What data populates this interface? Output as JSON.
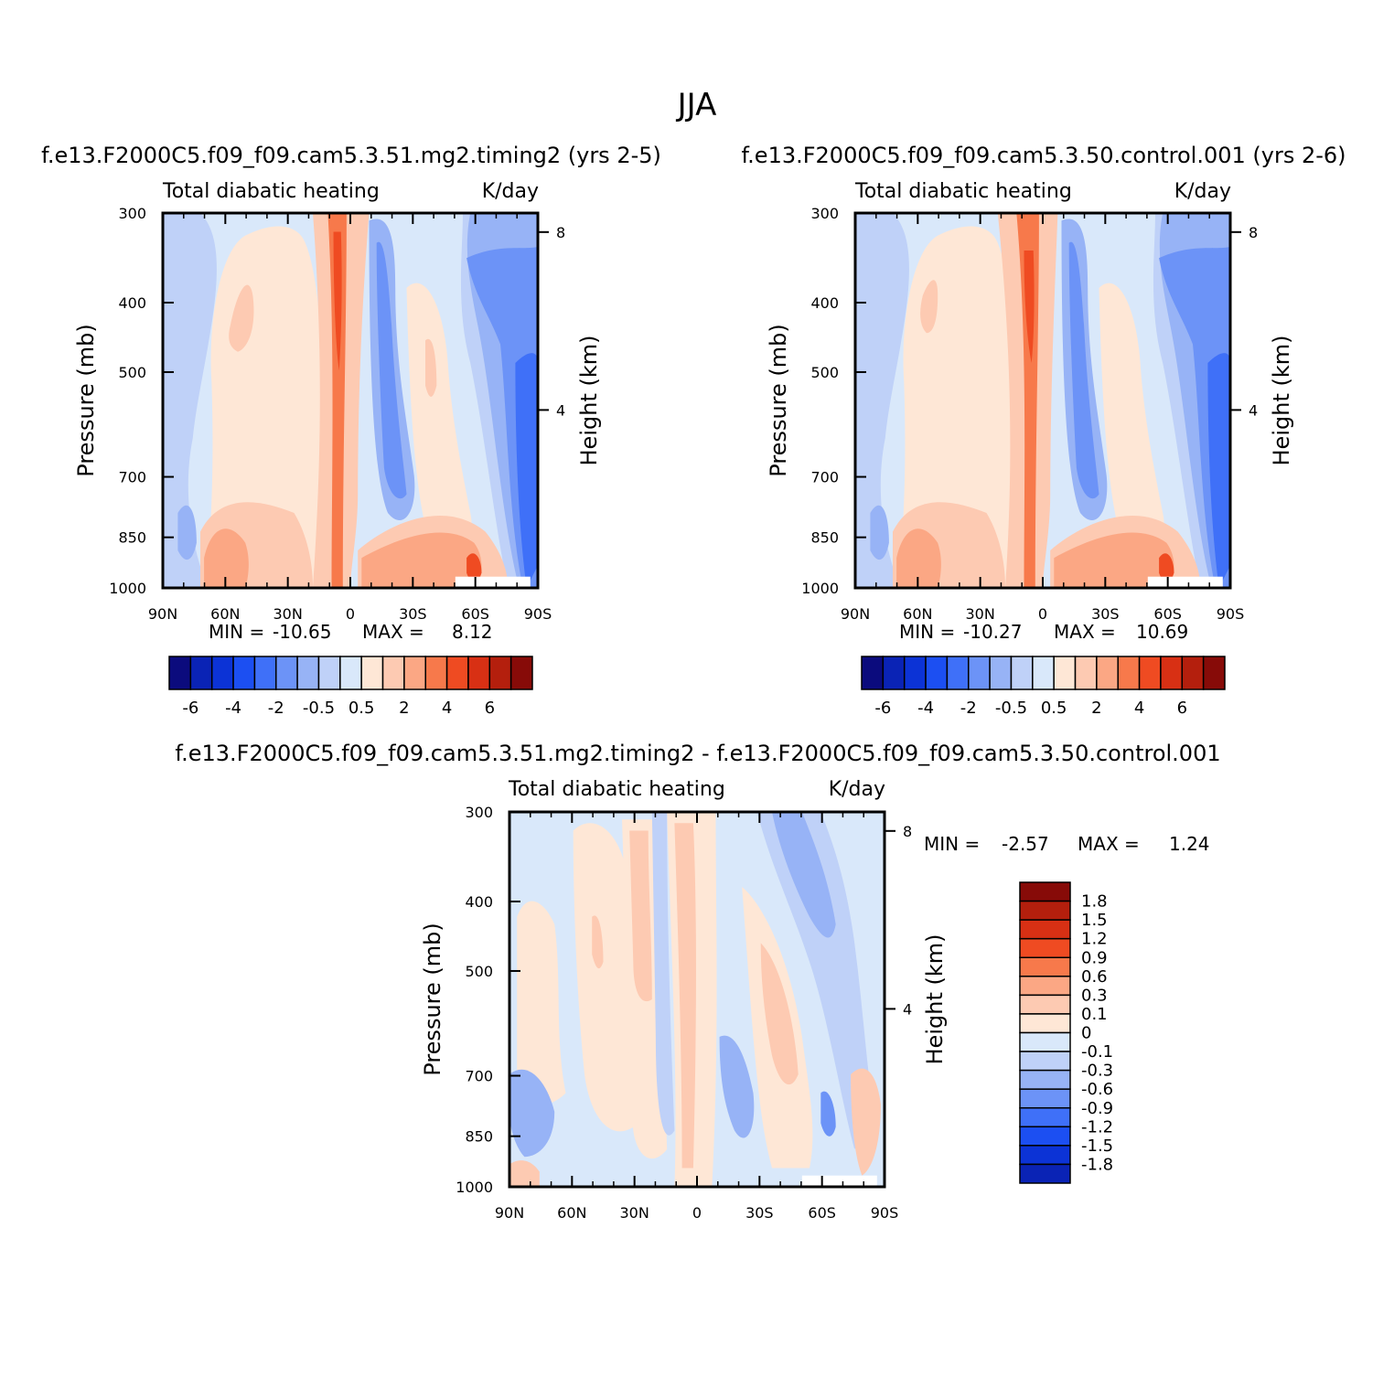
{
  "page": {
    "title": "JJA"
  },
  "chart_data": [
    {
      "id": "panel1",
      "type": "heatmap",
      "case_title": "f.e13.F2000C5.f09_f09.cam5.3.51.mg2.timing2 (yrs 2-5)",
      "left_label": "Total diabatic heating",
      "right_label": "K/day",
      "xlabel": "",
      "ylabel": "Pressure (mb)",
      "y2label": "Height (km)",
      "x_ticks": [
        "90N",
        "60N",
        "30N",
        "0",
        "30S",
        "60S",
        "90S"
      ],
      "y_ticks": [
        "300",
        "400",
        "500",
        "700",
        "850",
        "1000"
      ],
      "y_tick_values": [
        300,
        400,
        500,
        700,
        850,
        1000
      ],
      "y2_ticks": [
        "8",
        "4"
      ],
      "y2_tick_values": [
        8,
        4
      ],
      "xlim": [
        90,
        -90
      ],
      "ylim": [
        1000,
        300
      ],
      "min_label": "MIN =",
      "min_value": "-10.65",
      "max_label": "MAX =",
      "max_value": "8.12",
      "colorbar_labels": [
        "-6",
        "-4",
        "-2",
        "-0.5",
        "0.5",
        "2",
        "4",
        "6"
      ],
      "colorbar_levels": [
        -6,
        -5,
        -4,
        -3,
        -2,
        -1,
        -0.5,
        0,
        0.5,
        1,
        2,
        3,
        4,
        5,
        6
      ],
      "colorbar_colors": [
        "#0b0b7d",
        "#0a23b5",
        "#0c33d6",
        "#1c4ff2",
        "#3f70f8",
        "#6c93f7",
        "#97b3f6",
        "#bfd1f8",
        "#d9e8fa",
        "#fee7d6",
        "#fdcab2",
        "#fba784",
        "#f7794b",
        "#ef4b22",
        "#d83014",
        "#b41f0d",
        "#870b08"
      ]
    },
    {
      "id": "panel2",
      "type": "heatmap",
      "case_title": "f.e13.F2000C5.f09_f09.cam5.3.50.control.001 (yrs 2-6)",
      "left_label": "Total diabatic heating",
      "right_label": "K/day",
      "xlabel": "",
      "ylabel": "Pressure (mb)",
      "y2label": "Height (km)",
      "x_ticks": [
        "90N",
        "60N",
        "30N",
        "0",
        "30S",
        "60S",
        "90S"
      ],
      "y_ticks": [
        "300",
        "400",
        "500",
        "700",
        "850",
        "1000"
      ],
      "y_tick_values": [
        300,
        400,
        500,
        700,
        850,
        1000
      ],
      "y2_ticks": [
        "8",
        "4"
      ],
      "y2_tick_values": [
        8,
        4
      ],
      "xlim": [
        90,
        -90
      ],
      "ylim": [
        1000,
        300
      ],
      "min_label": "MIN =",
      "min_value": "-10.27",
      "max_label": "MAX =",
      "max_value": "10.69",
      "colorbar_labels": [
        "-6",
        "-4",
        "-2",
        "-0.5",
        "0.5",
        "2",
        "4",
        "6"
      ],
      "colorbar_levels": [
        -6,
        -5,
        -4,
        -3,
        -2,
        -1,
        -0.5,
        0,
        0.5,
        1,
        2,
        3,
        4,
        5,
        6
      ],
      "colorbar_colors": [
        "#0b0b7d",
        "#0a23b5",
        "#0c33d6",
        "#1c4ff2",
        "#3f70f8",
        "#6c93f7",
        "#97b3f6",
        "#bfd1f8",
        "#d9e8fa",
        "#fee7d6",
        "#fdcab2",
        "#fba784",
        "#f7794b",
        "#ef4b22",
        "#d83014",
        "#b41f0d",
        "#870b08"
      ]
    },
    {
      "id": "panel3",
      "type": "heatmap",
      "case_title": "f.e13.F2000C5.f09_f09.cam5.3.51.mg2.timing2 - f.e13.F2000C5.f09_f09.cam5.3.50.control.001",
      "left_label": "Total diabatic heating",
      "right_label": "K/day",
      "xlabel": "",
      "ylabel": "Pressure (mb)",
      "y2label": "Height (km)",
      "x_ticks": [
        "90N",
        "60N",
        "30N",
        "0",
        "30S",
        "60S",
        "90S"
      ],
      "y_ticks": [
        "300",
        "400",
        "500",
        "700",
        "850",
        "1000"
      ],
      "y_tick_values": [
        300,
        400,
        500,
        700,
        850,
        1000
      ],
      "y2_ticks": [
        "8",
        "4"
      ],
      "y2_tick_values": [
        8,
        4
      ],
      "xlim": [
        90,
        -90
      ],
      "ylim": [
        1000,
        300
      ],
      "min_label": "MIN =",
      "min_value": "-2.57",
      "max_label": "MAX =",
      "max_value": "1.24",
      "colorbar_labels": [
        "1.8",
        "1.5",
        "1.2",
        "0.9",
        "0.6",
        "0.3",
        "0.1",
        "0",
        "-0.1",
        "-0.3",
        "-0.6",
        "-0.9",
        "-1.2",
        "-1.5",
        "-1.8"
      ],
      "colorbar_colors": [
        "#870b08",
        "#b41f0d",
        "#d83014",
        "#ef4b22",
        "#f7794b",
        "#fba784",
        "#fdcab2",
        "#fee7d6",
        "#d9e8fa",
        "#bfd1f8",
        "#97b3f6",
        "#6c93f7",
        "#3f70f8",
        "#1c4ff2",
        "#0c33d6",
        "#0a23b5"
      ]
    }
  ]
}
